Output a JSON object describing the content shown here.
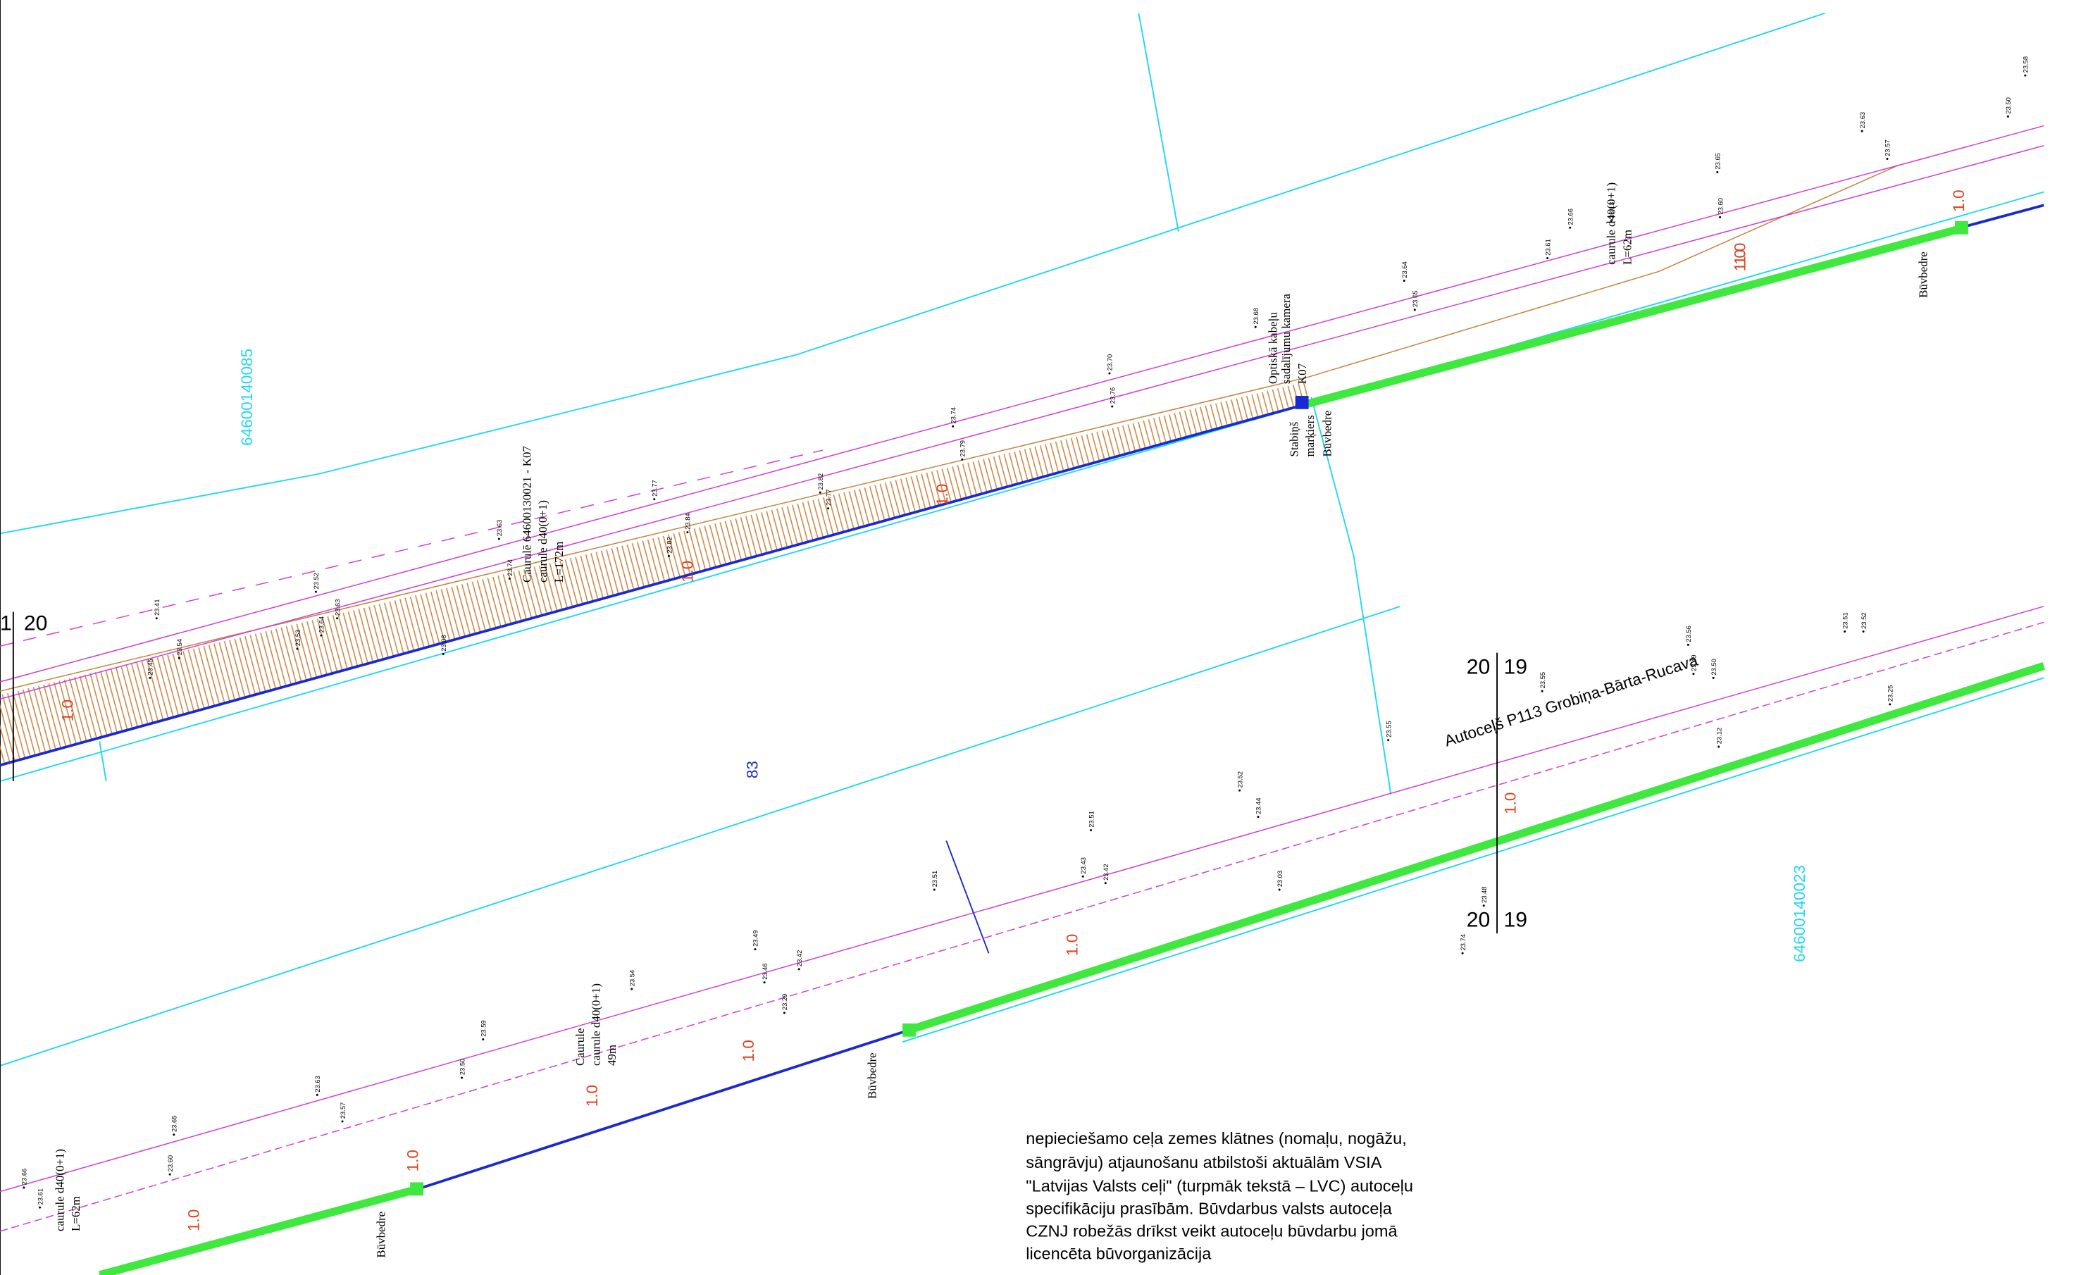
{
  "parcels": [
    "64600140085",
    "64600140023",
    "83"
  ],
  "road_name": "Autoceļš P113 Grobiņa-Bārta-Rucava",
  "station_marks": [
    "20",
    "19",
    "20",
    "19",
    "1",
    "20"
  ],
  "labels": [
    "Caurulē 64600130021 - K07",
    "caurule d40(0+1)",
    "L=172m",
    "Optiskā kabeļu",
    "sadalījumu kamera",
    "K07",
    "Stabiņš",
    "marķiers",
    "Būvbedre",
    "Būvbedre",
    "caurule d40(0+1)",
    "L=62m",
    "Būvbedre",
    "Caurule",
    "caurule d40(0+1)",
    "49m",
    "Būvbedre",
    "caurule d40(0+1)",
    "L=62m",
    "Būvbedre"
  ],
  "depth_marks": [
    "1.0",
    "1.0",
    "1.0",
    "1.0",
    "1.0",
    "1.0",
    "1.0",
    "1.0",
    "1.0",
    "1.0",
    "1.0",
    "1.0"
  ],
  "elevations": [
    "23.41",
    "23.45",
    "23.54",
    "23.52",
    "23.64",
    "23.63",
    "23.53",
    "23.08",
    "23.63",
    "23.74",
    "23.77",
    "23.82",
    "23.84",
    "23.77",
    "23.82",
    "23.74",
    "23.79",
    "23.70",
    "23.76",
    "23.68",
    "23.64",
    "23.65",
    "23.66",
    "23.61",
    "23.65",
    "23.60",
    "23.63",
    "23.57",
    "23.50",
    "23.58",
    "23.13",
    "23.55",
    "23.56",
    "23.51",
    "23.52",
    "23.49",
    "23.50",
    "23.12",
    "23.25",
    "23.55",
    "23.52",
    "23.44",
    "23.51",
    "23.43",
    "23.42",
    "23.03",
    "23.51",
    "23.49",
    "23.46",
    "23.42",
    "23.29",
    "23.54",
    "23.59",
    "23.50",
    "23.63",
    "23.57",
    "23.65",
    "23.60",
    "23.66",
    "23.61",
    "23.74",
    "23.48"
  ],
  "paragraph": [
    "nepieciešamo ceļa zemes klātnes (nomaļu, nogāžu,",
    "sāngrāvju) atjaunošanu atbilstoši aktuālām VSIA",
    "\"Latvijas Valsts ceļi\" (turpmāk tekstā – LVC) autoceļu",
    "specifikāciju prasībām. Būvdarbus valsts autoceļa",
    "CZNJ robežās drīkst veikt autoceļu būvdarbu jomā",
    "licencēta būvorganizācija"
  ]
}
